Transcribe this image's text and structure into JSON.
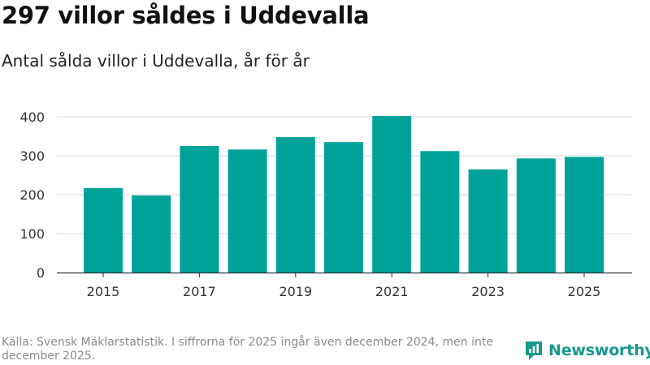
{
  "header": {
    "title": "297 villor såldes i Uddevalla",
    "subtitle": "Antal sålda villor i Uddevalla, år för år"
  },
  "footer": {
    "source_note": "Källa: Svensk Mäklarstatistik. I siffrorna för 2025 ingår även december 2024, men inte december 2025.",
    "brand_name": "Newsworthy"
  },
  "colors": {
    "bar": "#00A39A",
    "brand": "#18998C",
    "grid": "#dddddd",
    "axis": "#333333"
  },
  "chart_data": {
    "type": "bar",
    "title": "Antal sålda villor i Uddevalla, år för år",
    "xlabel": "",
    "ylabel": "",
    "categories": [
      2015,
      2016,
      2017,
      2018,
      2019,
      2020,
      2021,
      2022,
      2023,
      2024,
      2025
    ],
    "values": [
      217,
      198,
      325,
      316,
      348,
      335,
      402,
      312,
      265,
      293,
      297
    ],
    "ylim": [
      0,
      420
    ],
    "yticks": [
      0,
      100,
      200,
      300,
      400
    ],
    "xtick_labels": [
      "2015",
      "2017",
      "2019",
      "2021",
      "2023",
      "2025"
    ],
    "grid": true
  }
}
